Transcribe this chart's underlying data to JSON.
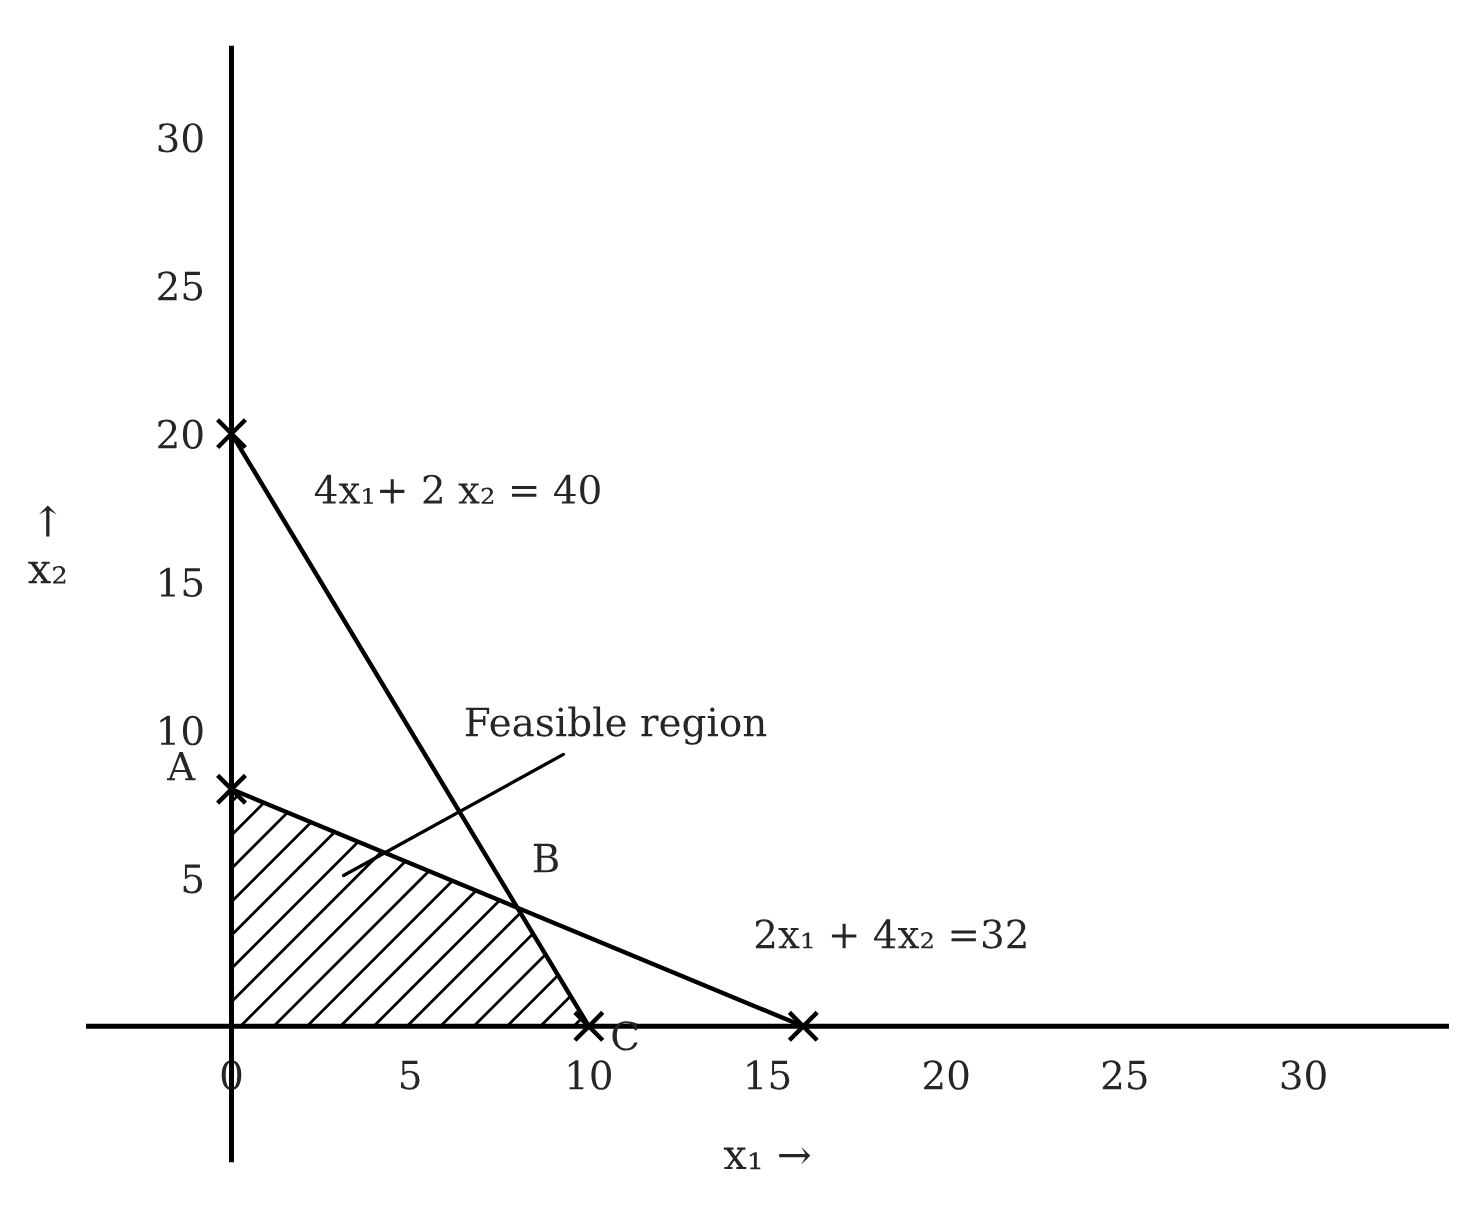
{
  "chart_data": {
    "type": "line",
    "xlabel": "x₁ →",
    "ylabel": "↑\nx₂",
    "series": [
      {
        "name": "4x₁+ 2 x₂ = 40",
        "color": "#000000",
        "x": [
          0,
          10
        ],
        "values": [
          20,
          0
        ],
        "marker": "cross"
      },
      {
        "name": "2x₁ + 4x₂ =32",
        "color": "#000000",
        "x": [
          0,
          16
        ],
        "values": [
          8,
          0
        ],
        "marker": "cross"
      },
      {
        "type": "area",
        "color": "#000000",
        "x": [
          0,
          8,
          10
        ],
        "values": [
          8,
          4,
          0
        ]
      }
    ],
    "annotations": [
      {
        "text": "A",
        "x": 0,
        "y": 8
      },
      {
        "text": "B",
        "x": 8,
        "y": 4
      },
      {
        "text": "C",
        "x": 10,
        "y": 0
      },
      "Feasible region"
    ],
    "xlim": [
      -4,
      34
    ],
    "ylim": [
      -4.5,
      33
    ],
    "xticks": [
      0,
      5,
      10,
      15,
      20,
      25,
      30
    ],
    "yticks": [
      5,
      10,
      15,
      20,
      25,
      30
    ],
    "grid": false,
    "legend": false
  }
}
